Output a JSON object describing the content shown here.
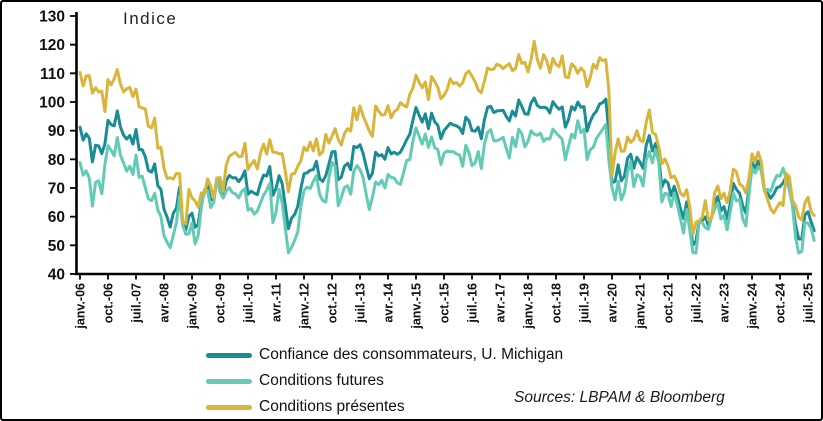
{
  "chart_data": {
    "type": "line",
    "title": "Indice",
    "source": "Sources: LBPAM & Bloomberg",
    "xlabel": "",
    "ylabel": "Indice",
    "ylim": [
      40,
      130
    ],
    "yticks": [
      40,
      50,
      60,
      70,
      80,
      90,
      100,
      110,
      120,
      130
    ],
    "grid": false,
    "legend_position": "bottom-left",
    "x_start_month": "janv.-06",
    "x_end_month": "sept.-25",
    "x_frequency": "monthly",
    "x_tick_interval_months": 9,
    "tick_labels": [
      "janv.-06",
      "oct.-06",
      "juil.-07",
      "avr.-08",
      "janv.-09",
      "oct.-09",
      "juil.-10",
      "avr.-11",
      "janv.-12",
      "oct.-12",
      "juil.-13",
      "avr.-14",
      "janv.-15",
      "oct.-15",
      "juil.-16",
      "avr.-17",
      "janv.-18",
      "oct.-18",
      "juil.-19",
      "avr.-20",
      "janv.-21",
      "oct.-21",
      "juil.-22",
      "avr.-23",
      "janv.-24",
      "oct.-24",
      "juil.-25"
    ],
    "series": [
      {
        "name": "Confiance des consommateurs, U. Michigan",
        "color": "#1A8C94",
        "values": [
          91.2,
          86.7,
          88.9,
          87.4,
          79.1,
          84.9,
          84.7,
          82.0,
          85.4,
          93.6,
          92.1,
          91.7,
          96.9,
          91.3,
          88.4,
          87.1,
          88.3,
          85.3,
          90.4,
          83.4,
          83.4,
          80.9,
          76.1,
          75.5,
          78.4,
          70.8,
          69.5,
          62.6,
          59.8,
          56.4,
          61.2,
          63.0,
          70.3,
          57.6,
          55.3,
          60.1,
          61.2,
          56.3,
          57.3,
          65.1,
          68.7,
          70.8,
          66.0,
          65.7,
          73.5,
          70.6,
          67.4,
          72.5,
          74.4,
          73.6,
          73.6,
          72.2,
          73.6,
          76.0,
          67.8,
          68.9,
          68.2,
          67.7,
          71.6,
          74.5,
          74.2,
          77.5,
          67.5,
          69.8,
          74.3,
          71.5,
          63.7,
          55.8,
          59.5,
          60.8,
          63.7,
          69.9,
          75.0,
          75.3,
          76.2,
          76.4,
          79.3,
          73.2,
          72.3,
          74.3,
          78.3,
          82.6,
          82.7,
          72.9,
          73.8,
          77.6,
          78.6,
          76.4,
          84.5,
          84.1,
          85.1,
          82.1,
          77.5,
          73.2,
          75.1,
          82.5,
          81.2,
          81.6,
          80.0,
          84.1,
          81.9,
          82.5,
          81.8,
          82.5,
          84.6,
          86.9,
          88.8,
          93.6,
          98.1,
          95.4,
          93.0,
          95.9,
          90.7,
          96.1,
          93.1,
          91.9,
          87.2,
          90.0,
          91.3,
          92.6,
          92.0,
          91.7,
          91.0,
          89.0,
          94.7,
          93.5,
          90.0,
          89.8,
          91.2,
          87.2,
          93.8,
          98.2,
          98.5,
          96.3,
          96.9,
          97.0,
          97.1,
          95.0,
          93.4,
          96.8,
          95.1,
          100.7,
          98.5,
          95.9,
          95.7,
          99.7,
          101.4,
          98.8,
          98.0,
          98.2,
          97.9,
          96.2,
          100.1,
          98.6,
          97.5,
          98.3,
          91.2,
          93.8,
          98.4,
          97.2,
          100.0,
          98.2,
          98.4,
          89.8,
          93.2,
          95.5,
          96.8,
          99.3,
          99.8,
          101.0,
          89.1,
          71.8,
          72.3,
          78.1,
          72.5,
          74.1,
          80.4,
          81.8,
          76.9,
          80.7,
          79.0,
          76.8,
          84.9,
          88.3,
          82.9,
          85.5,
          81.2,
          70.3,
          72.8,
          71.7,
          67.4,
          70.6,
          67.2,
          62.8,
          59.4,
          65.2,
          58.4,
          50.0,
          51.5,
          58.2,
          58.6,
          59.9,
          56.8,
          59.7,
          64.9,
          67.0,
          62.0,
          63.5,
          59.2,
          64.4,
          71.6,
          69.5,
          68.1,
          63.8,
          61.3,
          69.7,
          79.0,
          76.9,
          79.4,
          77.2,
          69.1,
          68.2,
          66.4,
          67.9,
          70.1,
          70.5,
          71.8,
          74.0,
          71.1,
          64.7,
          57.0,
          52.2,
          52.2,
          60.7,
          61.7,
          58.2,
          55.1
        ]
      },
      {
        "name": "Conditions futures",
        "color": "#63CBB4",
        "values": [
          78.9,
          74.5,
          76.0,
          73.4,
          63.7,
          72.0,
          72.5,
          68.0,
          78.2,
          84.8,
          83.2,
          81.2,
          87.6,
          81.5,
          78.7,
          75.9,
          77.6,
          74.7,
          81.5,
          73.7,
          74.1,
          70.1,
          66.2,
          65.6,
          68.1,
          62.4,
          60.1,
          53.3,
          51.1,
          49.2,
          53.5,
          57.9,
          67.2,
          57.0,
          53.9,
          54.0,
          57.8,
          50.5,
          53.5,
          63.1,
          69.4,
          69.2,
          63.2,
          65.0,
          73.5,
          68.6,
          66.5,
          68.9,
          70.1,
          68.4,
          67.9,
          66.5,
          68.8,
          69.8,
          62.3,
          62.9,
          60.9,
          61.9,
          64.8,
          67.5,
          69.3,
          71.6,
          57.9,
          61.6,
          69.5,
          64.8,
          56.0,
          47.4,
          49.4,
          51.8,
          54.8,
          63.6,
          69.1,
          70.3,
          69.8,
          72.3,
          74.3,
          67.8,
          65.6,
          65.1,
          73.5,
          79.0,
          77.6,
          63.8,
          66.6,
          70.2,
          70.8,
          67.8,
          75.8,
          77.8,
          76.5,
          73.7,
          67.8,
          62.5,
          66.8,
          72.1,
          71.2,
          72.7,
          70.0,
          74.7,
          73.7,
          73.5,
          71.8,
          71.3,
          75.4,
          79.6,
          79.9,
          86.4,
          91.0,
          88.0,
          85.3,
          88.8,
          84.2,
          87.8,
          84.1,
          83.4,
          78.2,
          82.1,
          82.9,
          82.7,
          82.7,
          81.9,
          81.5,
          77.6,
          84.9,
          82.4,
          77.8,
          78.7,
          82.7,
          76.8,
          85.2,
          89.5,
          90.3,
          86.5,
          86.5,
          87.0,
          87.7,
          83.9,
          80.5,
          87.7,
          84.4,
          90.5,
          88.9,
          84.3,
          86.3,
          90.0,
          88.8,
          88.4,
          89.1,
          86.3,
          87.3,
          87.1,
          90.5,
          89.3,
          88.1,
          87.0,
          79.9,
          84.4,
          88.8,
          87.4,
          93.5,
          89.3,
          90.5,
          79.9,
          83.4,
          84.2,
          87.3,
          88.9,
          90.5,
          92.1,
          79.7,
          70.1,
          65.9,
          72.3,
          65.9,
          68.5,
          75.6,
          79.2,
          70.5,
          74.6,
          74.0,
          70.7,
          79.7,
          82.7,
          78.8,
          83.5,
          79.0,
          65.1,
          68.1,
          67.9,
          63.5,
          68.3,
          64.1,
          59.4,
          54.3,
          62.5,
          55.2,
          47.5,
          47.3,
          58.0,
          58.0,
          56.2,
          55.6,
          59.9,
          62.7,
          64.7,
          59.2,
          60.5,
          55.4,
          61.5,
          68.3,
          65.5,
          66.0,
          59.3,
          56.8,
          67.4,
          77.1,
          75.2,
          77.4,
          76.0,
          68.8,
          69.6,
          68.8,
          72.1,
          74.4,
          74.1,
          76.9,
          73.3,
          69.3,
          64.0,
          52.6,
          47.3,
          47.9,
          58.1,
          57.7,
          55.9,
          51.7
        ]
      },
      {
        "name": "Conditions présentes",
        "color": "#D9B53C",
        "values": [
          110.3,
          105.6,
          109.1,
          109.2,
          103.1,
          105.0,
          103.5,
          103.8,
          96.6,
          107.8,
          106.0,
          108.1,
          111.3,
          106.3,
          103.5,
          104.6,
          105.1,
          101.9,
          104.5,
          98.4,
          97.9,
          97.6,
          91.5,
          91.0,
          94.4,
          83.8,
          84.2,
          77.0,
          73.3,
          73.6,
          73.1,
          75.1,
          75.0,
          58.4,
          57.5,
          69.5,
          66.5,
          65.5,
          63.3,
          68.3,
          67.7,
          73.2,
          70.5,
          66.6,
          73.4,
          73.7,
          68.8,
          78.0,
          81.1,
          81.8,
          82.4,
          81.0,
          81.0,
          85.6,
          76.5,
          78.3,
          79.6,
          76.6,
          82.1,
          85.3,
          81.8,
          86.9,
          82.5,
          82.5,
          81.9,
          82.0,
          75.8,
          68.7,
          74.9,
          75.1,
          77.6,
          79.6,
          84.2,
          83.0,
          86.0,
          82.9,
          87.2,
          81.5,
          82.7,
          88.7,
          85.7,
          88.1,
          90.7,
          87.0,
          85.0,
          89.0,
          90.7,
          89.9,
          98.0,
          93.8,
          98.6,
          95.2,
          92.6,
          89.9,
          88.0,
          98.6,
          96.8,
          95.4,
          95.7,
          98.7,
          94.5,
          96.6,
          97.4,
          99.8,
          98.9,
          98.3,
          102.7,
          104.8,
          109.3,
          106.9,
          105.0,
          107.0,
          100.8,
          108.9,
          107.2,
          105.1,
          101.2,
          102.3,
          104.3,
          108.1,
          106.4,
          106.8,
          105.6,
          106.7,
          109.9,
          110.8,
          109.0,
          107.0,
          104.2,
          103.2,
          107.3,
          111.9,
          111.3,
          111.5,
          113.2,
          112.7,
          111.7,
          112.5,
          113.4,
          110.9,
          111.7,
          116.5,
          113.5,
          113.8,
          110.5,
          114.9,
          121.2,
          114.9,
          111.8,
          116.5,
          114.4,
          110.3,
          115.2,
          113.1,
          112.3,
          116.1,
          108.8,
          108.5,
          113.3,
          112.3,
          110.0,
          111.9,
          110.7,
          105.3,
          108.5,
          113.2,
          111.6,
          115.5,
          114.4,
          114.8,
          103.7,
          74.3,
          82.3,
          87.1,
          82.8,
          82.9,
          87.8,
          85.9,
          87.0,
          90.0,
          86.7,
          86.2,
          93.0,
          97.2,
          89.4,
          88.6,
          84.5,
          78.5,
          80.1,
          77.7,
          73.6,
          74.2,
          72.0,
          68.2,
          67.2,
          69.4,
          63.3,
          53.8,
          58.1,
          58.6,
          59.7,
          65.6,
          58.8,
          59.4,
          68.4,
          70.7,
          66.3,
          68.2,
          64.9,
          69.0,
          76.6,
          75.7,
          71.4,
          70.6,
          68.3,
          73.3,
          81.9,
          79.4,
          82.5,
          79.0,
          69.6,
          65.9,
          62.7,
          61.3,
          63.3,
          64.9,
          63.9,
          75.1,
          74.0,
          65.7,
          63.8,
          59.8,
          58.9,
          64.8,
          66.8,
          61.7,
          60.4
        ]
      }
    ]
  }
}
